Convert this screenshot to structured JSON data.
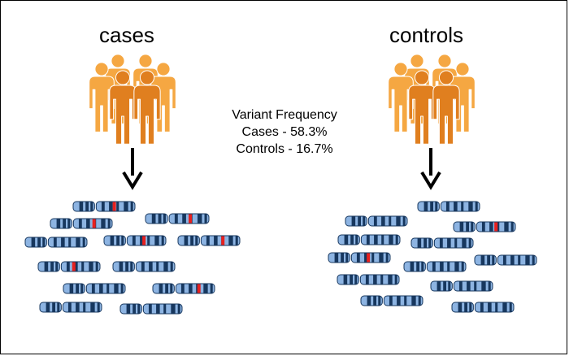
{
  "groups": {
    "cases": {
      "label": "cases",
      "variant_chromosomes": 7,
      "total_chromosomes": 12
    },
    "controls": {
      "label": "controls",
      "variant_chromosomes": 2,
      "total_chromosomes": 12
    }
  },
  "frequency": {
    "title": "Variant Frequency",
    "cases_line": "Cases - 58.3%",
    "controls_line": "Controls - 16.7%"
  },
  "colors": {
    "person_light": "#F5A742",
    "person_dark": "#E07F1F",
    "chrom_light": "#8DB4E2",
    "chrom_dark": "#17375E",
    "variant": "#E8201E",
    "arrow": "#000000"
  },
  "icons": {
    "people": "people-group-icon",
    "arrow": "down-arrow-icon",
    "chromosome": "chromosome-icon"
  }
}
